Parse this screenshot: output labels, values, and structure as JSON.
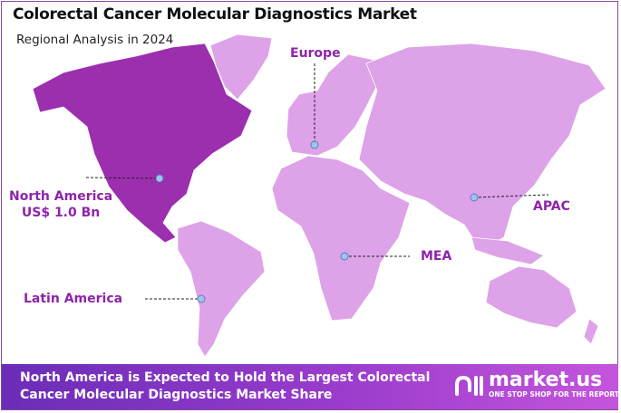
{
  "header": {
    "title": "Colorectal Cancer Molecular Diagnostics Market",
    "subtitle": "Regional Analysis in 2024"
  },
  "regions": [
    {
      "name": "North America",
      "value": "US$ 1.0 Bn",
      "highlighted": true
    },
    {
      "name": "Europe"
    },
    {
      "name": "APAC"
    },
    {
      "name": "MEA"
    },
    {
      "name": "Latin America"
    }
  ],
  "colors": {
    "highlight": "#9b2fae",
    "land": "#dda2e8",
    "label": "#8e24aa",
    "marker": "#9ec3f0"
  },
  "banner": {
    "line1": "North America is Expected to Hold the Largest Colorectal",
    "line2": "Cancer Molecular Diagnostics Market Share"
  },
  "logo": {
    "name": "market.us",
    "tagline": "ONE STOP SHOP FOR THE REPORTS"
  }
}
